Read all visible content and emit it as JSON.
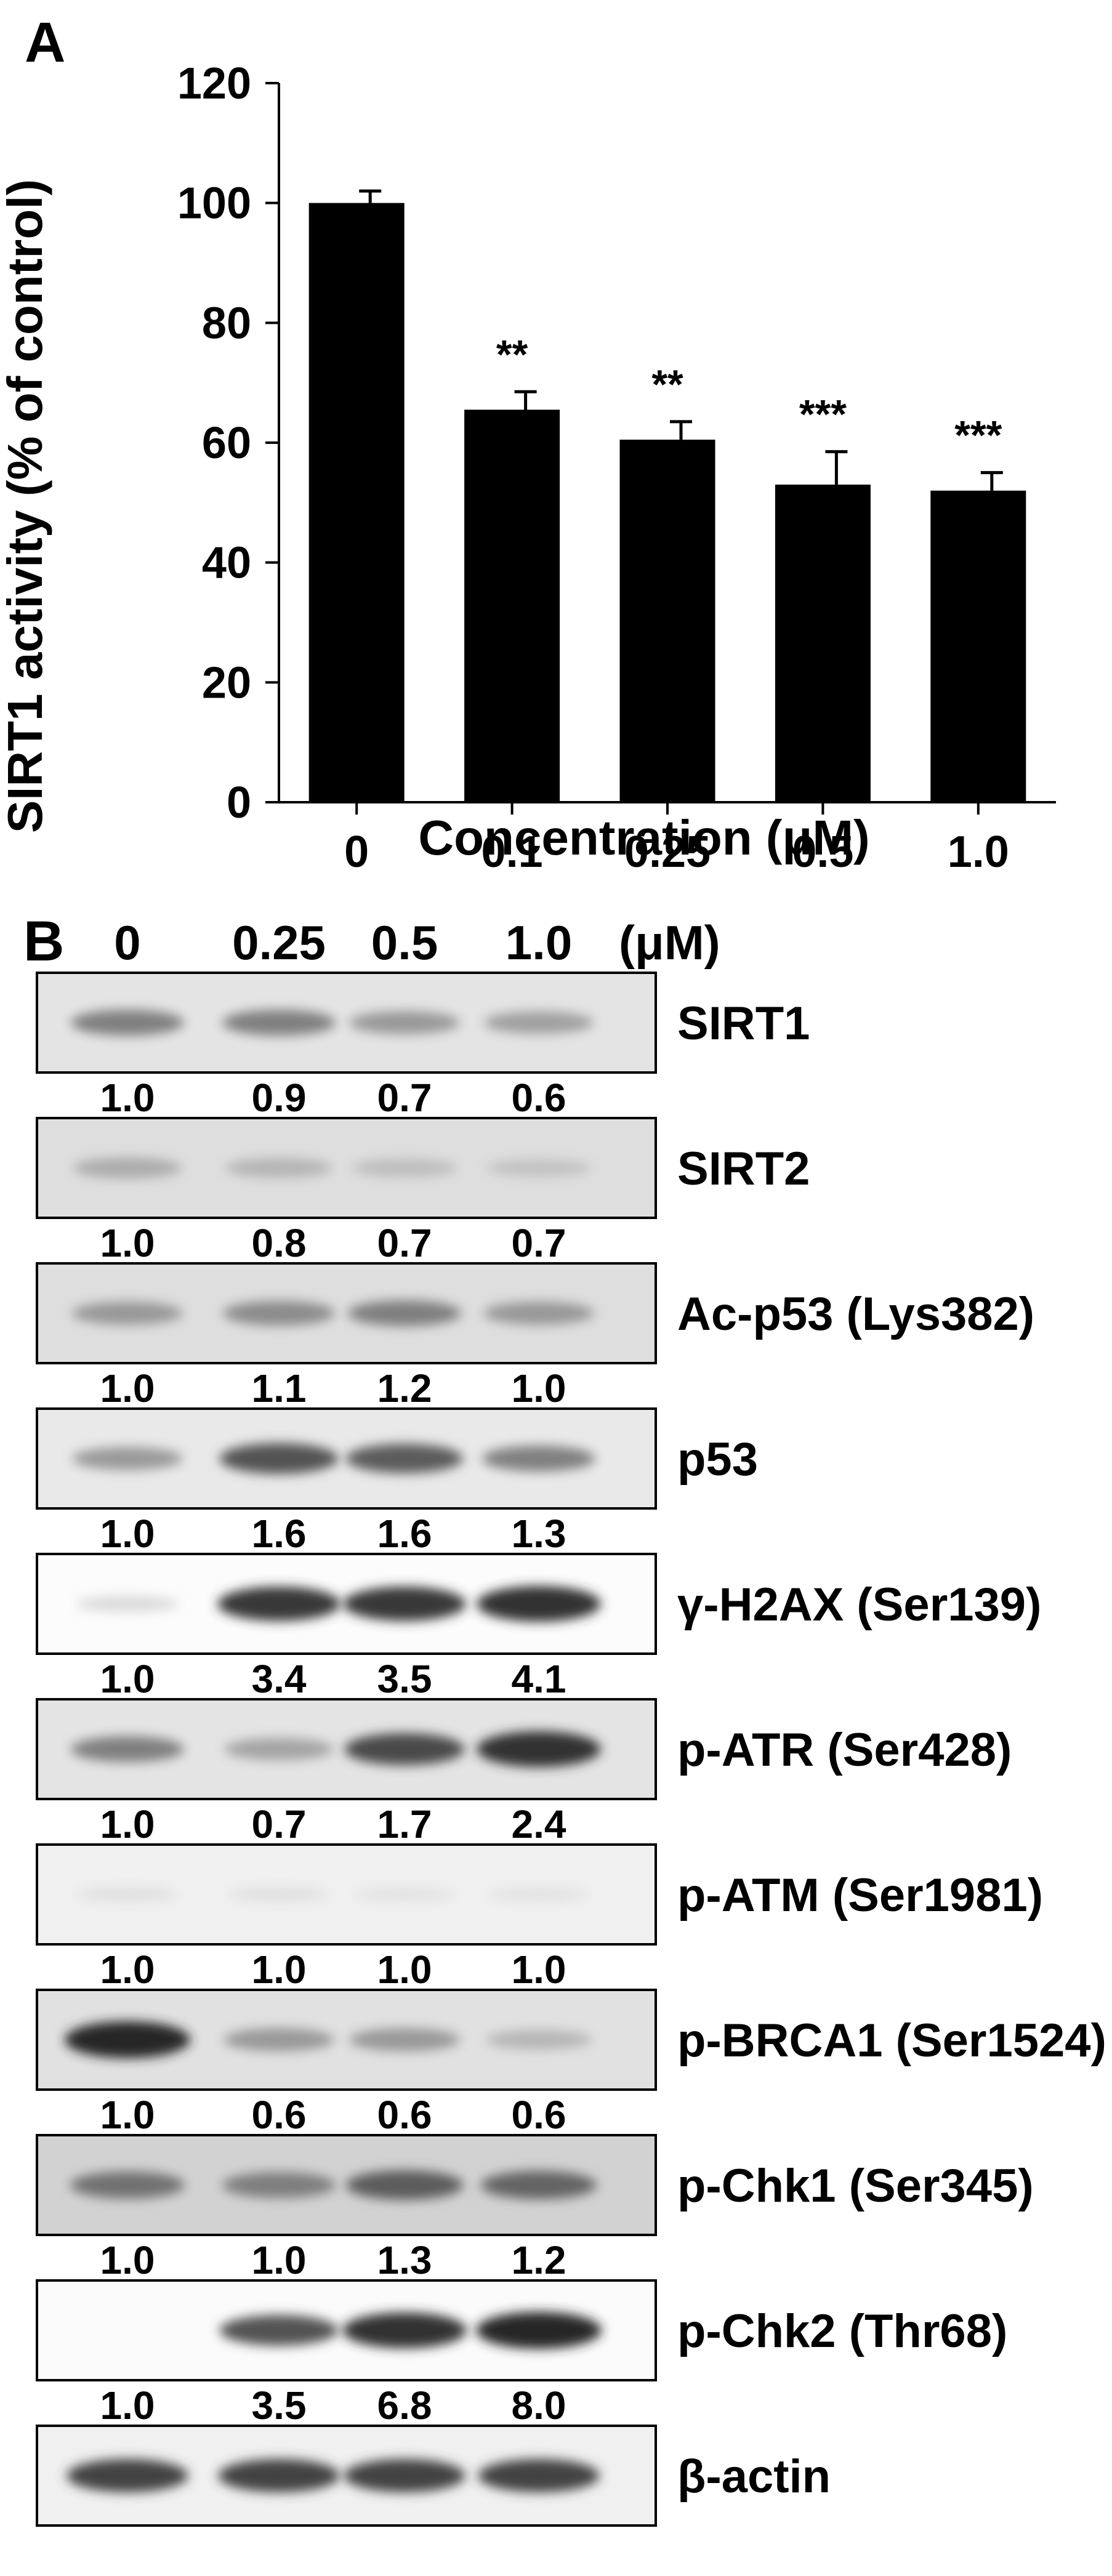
{
  "panel_a": {
    "letter": "A",
    "chart_data": {
      "type": "bar",
      "title": "",
      "xlabel": "Concentration (μM)",
      "ylabel": "SIRT1 activity (% of control)",
      "categories": [
        "0",
        "0.1",
        "0.25",
        "0.5",
        "1.0"
      ],
      "values": [
        100,
        65.5,
        60.5,
        53,
        52
      ],
      "errors": [
        2,
        3,
        3,
        5.5,
        3
      ],
      "significance": [
        "",
        "**",
        "**",
        "***",
        "***"
      ],
      "ylim": [
        0,
        120
      ],
      "yticks": [
        "0",
        "20",
        "40",
        "60",
        "80",
        "100",
        "120"
      ],
      "bar_color": "#000000",
      "grid": false,
      "legend": "none"
    }
  },
  "panel_b": {
    "letter": "B",
    "lanes": [
      "0",
      "0.25",
      "0.5",
      "1.0"
    ],
    "unit": "(μM)",
    "blots": [
      {
        "protein": "SIRT1",
        "quant": [
          "1.0",
          "0.9",
          "0.7",
          "0.6"
        ],
        "bands": [
          0.55,
          0.55,
          0.45,
          0.42
        ],
        "background": 0.18
      },
      {
        "protein": "SIRT2",
        "quant": [
          "1.0",
          "0.8",
          "0.7",
          "0.7"
        ],
        "bands": [
          0.35,
          0.3,
          0.25,
          0.22
        ],
        "background": 0.22
      },
      {
        "protein": "Ac-p53 (Lys382)",
        "quant": [
          "1.0",
          "1.1",
          "1.2",
          "1.0"
        ],
        "bands": [
          0.45,
          0.5,
          0.55,
          0.45
        ],
        "background": 0.22
      },
      {
        "protein": "p53",
        "quant": [
          "1.0",
          "1.6",
          "1.6",
          "1.3"
        ],
        "bands": [
          0.45,
          0.75,
          0.7,
          0.55
        ],
        "background": 0.15
      },
      {
        "protein": "γ-H2AX (Ser139)",
        "quant": [
          "1.0",
          "3.4",
          "3.5",
          "4.1"
        ],
        "bands": [
          0.15,
          0.9,
          0.9,
          0.95
        ],
        "background": 0.02
      },
      {
        "protein": "p-ATR (Ser428)",
        "quant": [
          "1.0",
          "0.7",
          "1.7",
          "2.4"
        ],
        "bands": [
          0.55,
          0.4,
          0.8,
          0.95
        ],
        "background": 0.18
      },
      {
        "protein": "p-ATM (Ser1981)",
        "quant": [
          "1.0",
          "1.0",
          "1.0",
          "1.0"
        ],
        "bands": [
          0.06,
          0.06,
          0.04,
          0.04
        ],
        "background": 0.1
      },
      {
        "protein": "p-BRCA1 (Ser1524)",
        "quant": [
          "1.0",
          "0.6",
          "0.6",
          "0.6"
        ],
        "bands": [
          1.0,
          0.45,
          0.45,
          0.3
        ],
        "background": 0.2
      },
      {
        "protein": "p-Chk1 (Ser345)",
        "quant": [
          "1.0",
          "1.0",
          "1.3",
          "1.2"
        ],
        "bands": [
          0.6,
          0.55,
          0.7,
          0.65
        ],
        "background": 0.3
      },
      {
        "protein": "p-Chk2 (Thr68)",
        "quant": [
          "1.0",
          "3.5",
          "6.8",
          "8.0"
        ],
        "bands": [
          0.0,
          0.75,
          0.95,
          1.0
        ],
        "background": 0.03
      },
      {
        "protein": "β-actin",
        "quant": [],
        "bands": [
          0.85,
          0.85,
          0.85,
          0.85
        ],
        "background": 0.1
      }
    ]
  }
}
